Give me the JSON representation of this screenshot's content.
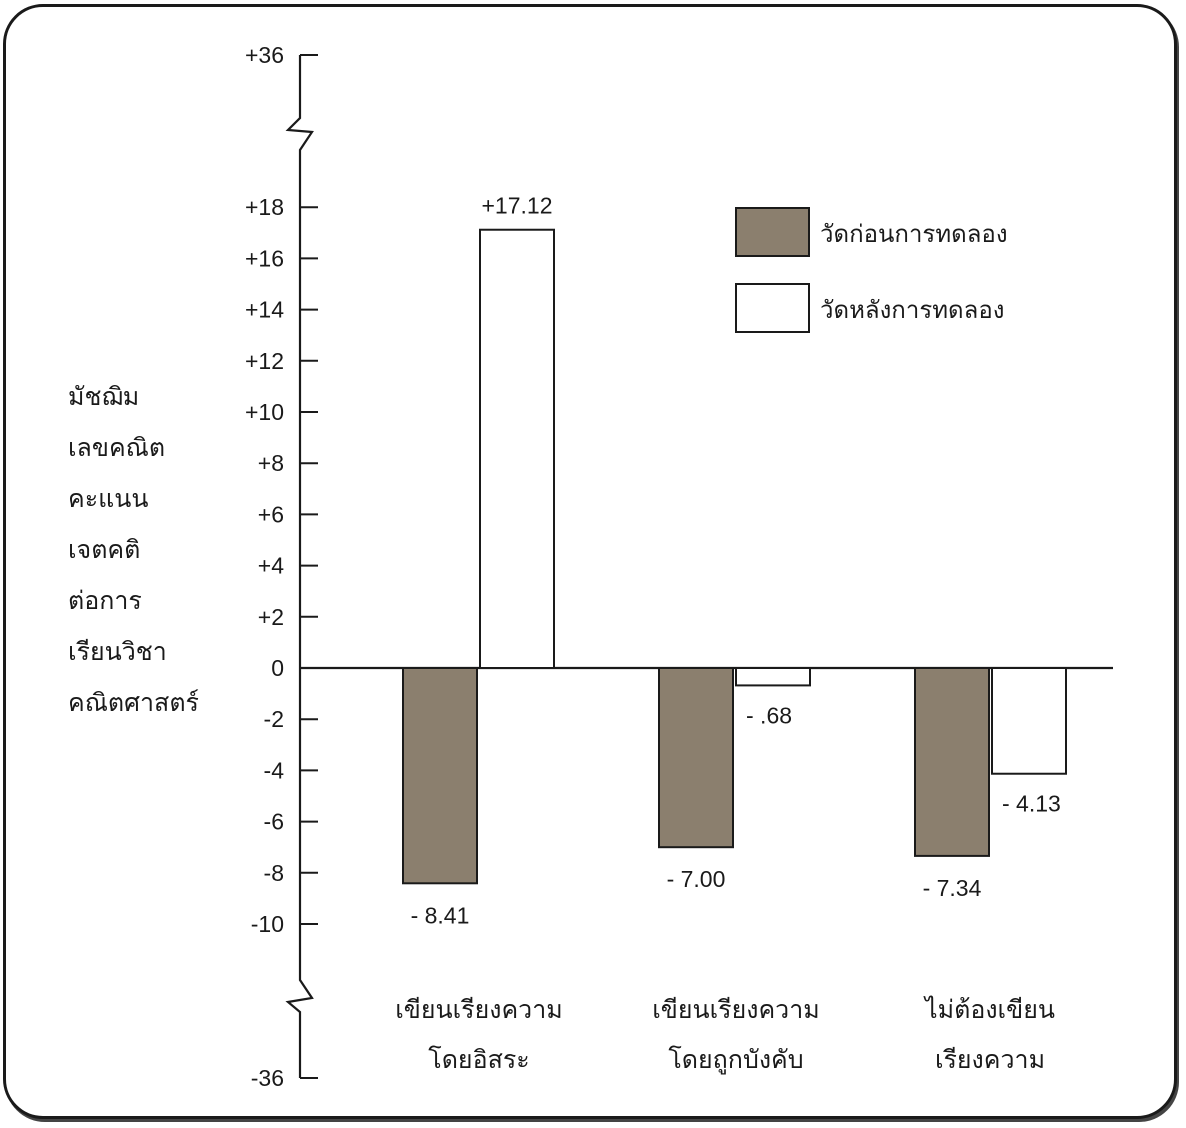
{
  "chart_data": {
    "type": "bar",
    "ylabel_lines": [
      "มัชฌิม",
      "เลขคณิต",
      "คะแนน",
      "เจตคติ",
      "ต่อการ",
      "เรียนวิชา",
      "คณิตศาสตร์"
    ],
    "categories": [
      [
        "เขียนเรียงความ",
        "โดยอิสระ"
      ],
      [
        "เขียนเรียงความ",
        "โดยถูกบังคับ"
      ],
      [
        "ไม่ต้องเขียน",
        "เรียงความ"
      ]
    ],
    "series": [
      {
        "name": "วัดก่อนการทดลอง",
        "values": [
          -8.41,
          -7.0,
          -7.34
        ],
        "labels": [
          "- 8.41",
          "- 7.00",
          "- 7.34"
        ],
        "color": "#8b7f6e"
      },
      {
        "name": "วัดหลังการทดลอง",
        "values": [
          17.12,
          -0.68,
          -4.13
        ],
        "labels": [
          "+17.12",
          "- .68",
          "- 4.13"
        ],
        "color": "#ffffff"
      }
    ],
    "yticks": [
      "+18",
      "+16",
      "+14",
      "+12",
      "+10",
      "+8",
      "+6",
      "+4",
      "+2",
      "0",
      "-2",
      "-4",
      "-6",
      "-8",
      "-10"
    ],
    "ytick_values": [
      18,
      16,
      14,
      12,
      10,
      8,
      6,
      4,
      2,
      0,
      -2,
      -4,
      -6,
      -8,
      -10
    ],
    "axis_break_top": "+36",
    "axis_break_bottom": "-36",
    "ylim": [
      -10,
      18
    ],
    "grid": false,
    "legend_position": "top-right"
  }
}
